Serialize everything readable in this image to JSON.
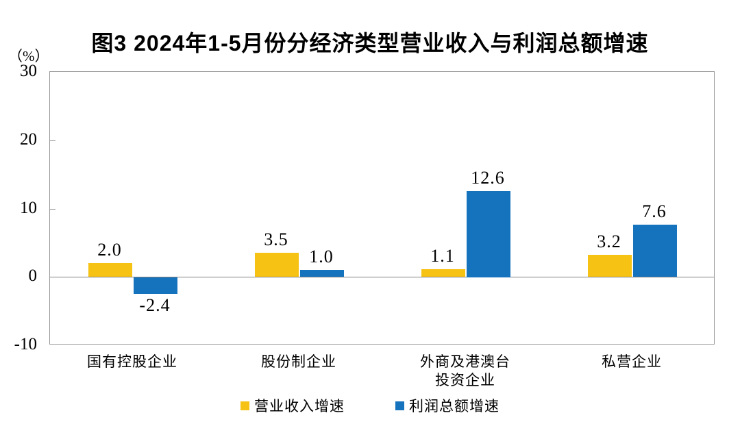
{
  "chart_data": {
    "type": "bar",
    "title": "图3  2024年1-5月份分经济类型营业收入与利润总额增速",
    "unit_label": "（%）",
    "categories": [
      "国有控股企业",
      "股份制企业",
      "外商及港澳台\n投资企业",
      "私营企业"
    ],
    "series": [
      {
        "name": "营业收入增速",
        "color": "#F6C214",
        "values": [
          2.0,
          3.5,
          1.1,
          3.2
        ]
      },
      {
        "name": "利润总额增速",
        "color": "#1572BD",
        "values": [
          -2.4,
          1.0,
          12.6,
          7.6
        ]
      }
    ],
    "data_labels": [
      [
        "2.0",
        "3.5",
        "1.1",
        "3.2"
      ],
      [
        "-2.4",
        "1.0",
        "12.6",
        "7.6"
      ]
    ],
    "ylim": [
      -10,
      30
    ],
    "yticks": [
      30,
      20,
      10,
      0,
      -10
    ],
    "grid": false,
    "legend_position": "bottom",
    "axis_color": "#999999",
    "zero_line_color": "#808080"
  }
}
